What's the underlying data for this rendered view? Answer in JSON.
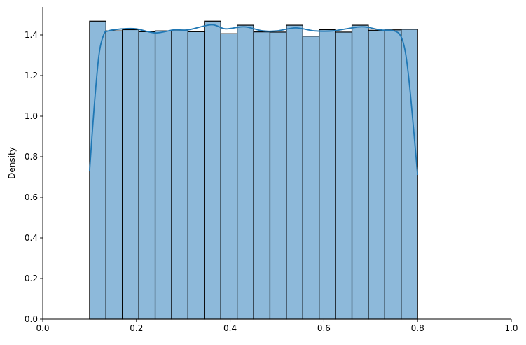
{
  "chart_data": {
    "type": "histogram",
    "title": "",
    "xlabel": "",
    "ylabel": "Density",
    "xlim": [
      0.0,
      1.0
    ],
    "ylim": [
      0.0,
      1.54
    ],
    "grid": false,
    "bin_start": 0.1,
    "bin_width": 0.035,
    "values": [
      1.468,
      1.42,
      1.426,
      1.416,
      1.42,
      1.424,
      1.416,
      1.468,
      1.406,
      1.448,
      1.415,
      1.414,
      1.448,
      1.394,
      1.426,
      1.414,
      1.448,
      1.423,
      1.425,
      1.428
    ],
    "kde": {
      "x": [
        0.1,
        0.11,
        0.12,
        0.13,
        0.14,
        0.17,
        0.2,
        0.24,
        0.28,
        0.31,
        0.36,
        0.39,
        0.43,
        0.47,
        0.5,
        0.54,
        0.58,
        0.62,
        0.68,
        0.72,
        0.75,
        0.765,
        0.775,
        0.785,
        0.8
      ],
      "y": [
        0.73,
        1.05,
        1.3,
        1.4,
        1.42,
        1.43,
        1.43,
        1.41,
        1.425,
        1.425,
        1.45,
        1.43,
        1.44,
        1.42,
        1.42,
        1.435,
        1.42,
        1.42,
        1.44,
        1.425,
        1.42,
        1.39,
        1.3,
        1.1,
        0.71
      ]
    },
    "xticks": [
      "0.0",
      "0.2",
      "0.4",
      "0.6",
      "0.8",
      "1.0"
    ],
    "yticks": [
      "0.0",
      "0.2",
      "0.4",
      "0.6",
      "0.8",
      "1.0",
      "1.2",
      "1.4"
    ],
    "colors": {
      "bar": "#8db9da",
      "edge": "#000000",
      "kde": "#1f77b4"
    }
  }
}
